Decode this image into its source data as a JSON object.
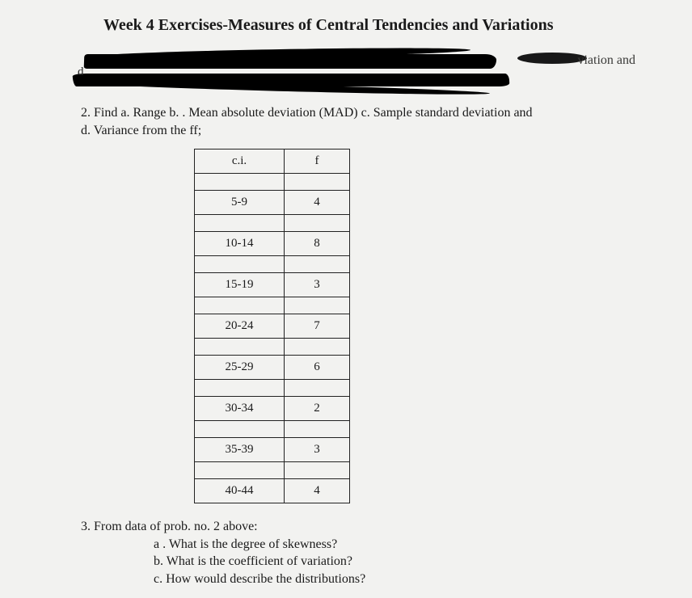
{
  "title": "Week 4 Exercises-Measures of Central Tendencies and Variations",
  "partial_text": "viation and",
  "small_d": "d",
  "q2": {
    "line1": "2. Find a. Range b. . Mean absolute deviation (MAD) c. Sample standard deviation and",
    "line2": "d. Variance from the ff;"
  },
  "table": {
    "headers": {
      "ci": "c.i.",
      "f": "f"
    },
    "rows": [
      {
        "ci": "5-9",
        "f": "4"
      },
      {
        "ci": "10-14",
        "f": "8"
      },
      {
        "ci": "15-19",
        "f": "3"
      },
      {
        "ci": "20-24",
        "f": "7"
      },
      {
        "ci": "25-29",
        "f": "6"
      },
      {
        "ci": "30-34",
        "f": "2"
      },
      {
        "ci": "35-39",
        "f": "3"
      },
      {
        "ci": "40-44",
        "f": "4"
      }
    ]
  },
  "q3": {
    "lead": "3. From data of prob. no. 2 above:",
    "a": "a . What is the degree of skewness?",
    "b": "b. What is the coefficient of variation?",
    "c": "c. How would describe the distributions?"
  }
}
